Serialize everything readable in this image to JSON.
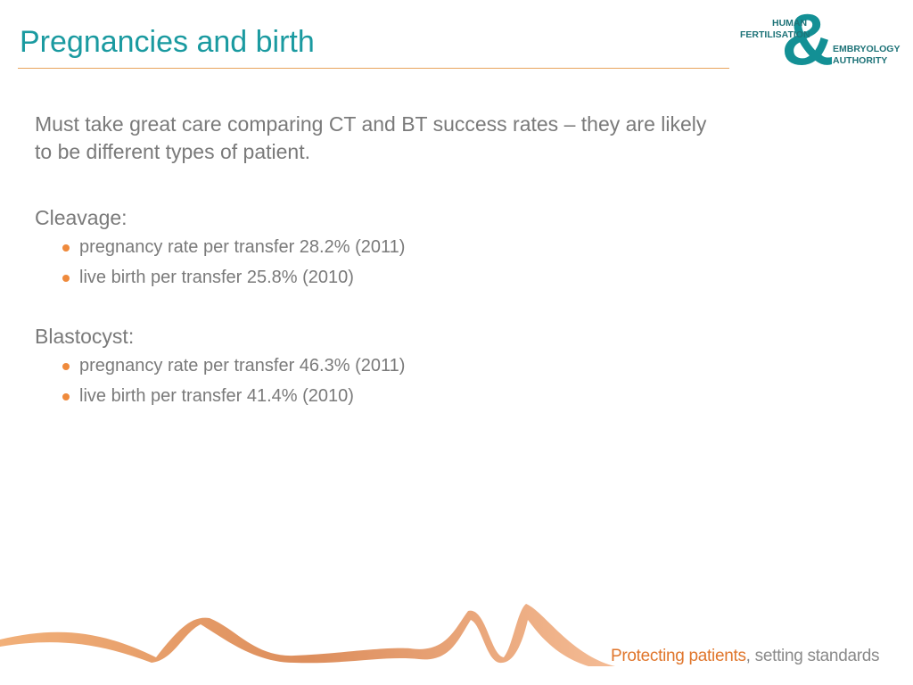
{
  "title": "Pregnancies and birth",
  "logo": {
    "symbol": "&",
    "lines": [
      "HUMAN",
      "FERTILISATION",
      "EMBRYOLOGY",
      "AUTHORITY"
    ]
  },
  "intro": "Must take great care comparing CT and BT success rates – they are likely to be different types of patient.",
  "sections": [
    {
      "heading": "Cleavage:",
      "bullets": [
        "pregnancy rate per transfer 28.2% (2011)",
        "live birth per transfer 25.8% (2010)"
      ]
    },
    {
      "heading": "Blastocyst:",
      "bullets": [
        "pregnancy rate per transfer 46.3% (2011)",
        "live birth per transfer 41.4% (2010)"
      ]
    }
  ],
  "footer": {
    "strong": "Protecting patients",
    "rest": ", setting standards"
  }
}
